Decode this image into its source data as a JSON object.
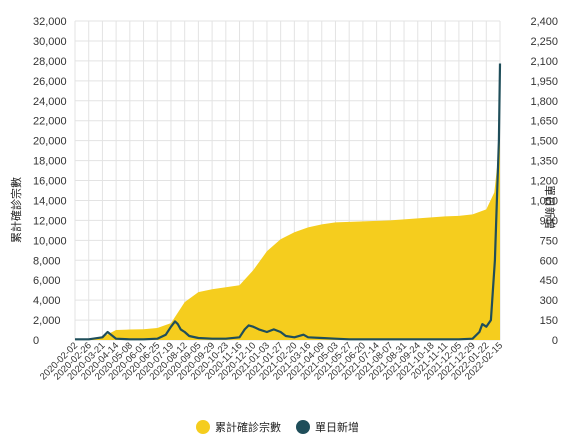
{
  "chart_data": {
    "type": "area",
    "ylabel_left": "累計確診宗數",
    "ylabel_right": "單日新增",
    "y_left_ticks": [
      "0",
      "2,000",
      "4,000",
      "6,000",
      "8,000",
      "10,000",
      "12,000",
      "14,000",
      "16,000",
      "18,000",
      "20,000",
      "22,000",
      "24,000",
      "26,000",
      "28,000",
      "30,000",
      "32,000"
    ],
    "y_right_ticks": [
      "0",
      "150",
      "300",
      "450",
      "600",
      "750",
      "900",
      "1,050",
      "1,200",
      "1,350",
      "1,500",
      "1,650",
      "1,800",
      "1,950",
      "2,100",
      "2,250",
      "2,400"
    ],
    "ylim_left": [
      0,
      32000
    ],
    "ylim_right": [
      0,
      2400
    ],
    "x_ticks": [
      "2020-02-02",
      "2020-02-26",
      "2020-03-21",
      "2020-04-14",
      "2020-05-08",
      "2020-06-01",
      "2020-06-25",
      "2020-07-19",
      "2020-08-12",
      "2020-09-05",
      "2020-09-29",
      "2020-10-23",
      "2020-11-16",
      "2020-12-10",
      "2021-01-03",
      "2021-01-27",
      "2021-02-20",
      "2021-03-16",
      "2021-04-09",
      "2021-05-03",
      "2021-05-27",
      "2021-06-20",
      "2021-07-14",
      "2021-08-07",
      "2021-08-31",
      "2021-09-24",
      "2021-10-18",
      "2021-11-11",
      "2021-12-05",
      "2021-12-29",
      "2022-01-22",
      "2022-02-15"
    ],
    "grid": true,
    "legend_position": "bottom",
    "series": [
      {
        "name": "累計確診宗數",
        "axis": "left",
        "color": "#F5CD1E",
        "points": [
          [
            "2020-02-02",
            0
          ],
          [
            "2020-02-26",
            80
          ],
          [
            "2020-03-21",
            300
          ],
          [
            "2020-04-14",
            1000
          ],
          [
            "2020-05-08",
            1050
          ],
          [
            "2020-06-01",
            1080
          ],
          [
            "2020-06-25",
            1200
          ],
          [
            "2020-07-19",
            1700
          ],
          [
            "2020-08-12",
            3800
          ],
          [
            "2020-09-05",
            4800
          ],
          [
            "2020-09-29",
            5100
          ],
          [
            "2020-10-23",
            5300
          ],
          [
            "2020-11-16",
            5500
          ],
          [
            "2020-12-10",
            7000
          ],
          [
            "2021-01-03",
            8900
          ],
          [
            "2021-01-27",
            10100
          ],
          [
            "2021-02-20",
            10800
          ],
          [
            "2021-03-16",
            11300
          ],
          [
            "2021-04-09",
            11600
          ],
          [
            "2021-05-03",
            11800
          ],
          [
            "2021-05-27",
            11850
          ],
          [
            "2021-06-20",
            11900
          ],
          [
            "2021-07-14",
            11950
          ],
          [
            "2021-08-07",
            12000
          ],
          [
            "2021-08-31",
            12100
          ],
          [
            "2021-09-24",
            12200
          ],
          [
            "2021-10-18",
            12300
          ],
          [
            "2021-11-11",
            12400
          ],
          [
            "2021-12-05",
            12450
          ],
          [
            "2021-12-29",
            12600
          ],
          [
            "2022-01-22",
            13100
          ],
          [
            "2022-02-05",
            14800
          ],
          [
            "2022-02-12",
            18500
          ],
          [
            "2022-02-15",
            21000
          ]
        ]
      },
      {
        "name": "單日新增",
        "axis": "right",
        "color": "#1F4E5A",
        "points": [
          [
            "2020-02-02",
            5
          ],
          [
            "2020-02-26",
            5
          ],
          [
            "2020-03-21",
            20
          ],
          [
            "2020-03-30",
            60
          ],
          [
            "2020-04-05",
            40
          ],
          [
            "2020-04-14",
            10
          ],
          [
            "2020-05-08",
            5
          ],
          [
            "2020-06-01",
            5
          ],
          [
            "2020-06-25",
            10
          ],
          [
            "2020-07-10",
            40
          ],
          [
            "2020-07-19",
            100
          ],
          [
            "2020-07-26",
            140
          ],
          [
            "2020-07-31",
            120
          ],
          [
            "2020-08-05",
            80
          ],
          [
            "2020-08-12",
            60
          ],
          [
            "2020-08-20",
            30
          ],
          [
            "2020-09-05",
            15
          ],
          [
            "2020-09-29",
            10
          ],
          [
            "2020-10-23",
            10
          ],
          [
            "2020-11-16",
            20
          ],
          [
            "2020-11-25",
            80
          ],
          [
            "2020-12-02",
            110
          ],
          [
            "2020-12-10",
            100
          ],
          [
            "2020-12-20",
            80
          ],
          [
            "2021-01-03",
            60
          ],
          [
            "2021-01-15",
            80
          ],
          [
            "2021-01-27",
            60
          ],
          [
            "2021-02-05",
            30
          ],
          [
            "2021-02-20",
            20
          ],
          [
            "2021-03-08",
            40
          ],
          [
            "2021-03-16",
            20
          ],
          [
            "2021-04-09",
            15
          ],
          [
            "2021-05-03",
            10
          ],
          [
            "2021-05-27",
            5
          ],
          [
            "2021-06-20",
            5
          ],
          [
            "2021-07-14",
            5
          ],
          [
            "2021-08-07",
            5
          ],
          [
            "2021-08-31",
            5
          ],
          [
            "2021-09-24",
            5
          ],
          [
            "2021-10-18",
            5
          ],
          [
            "2021-11-11",
            5
          ],
          [
            "2021-12-05",
            5
          ],
          [
            "2021-12-29",
            10
          ],
          [
            "2022-01-10",
            60
          ],
          [
            "2022-01-15",
            120
          ],
          [
            "2022-01-22",
            100
          ],
          [
            "2022-01-30",
            150
          ],
          [
            "2022-02-06",
            600
          ],
          [
            "2022-02-10",
            1100
          ],
          [
            "2022-02-13",
            1500
          ],
          [
            "2022-02-15",
            2080
          ]
        ]
      }
    ]
  },
  "legend": [
    {
      "label": "累計確診宗數",
      "color": "#F5CD1E"
    },
    {
      "label": "單日新增",
      "color": "#1F4E5A"
    }
  ]
}
